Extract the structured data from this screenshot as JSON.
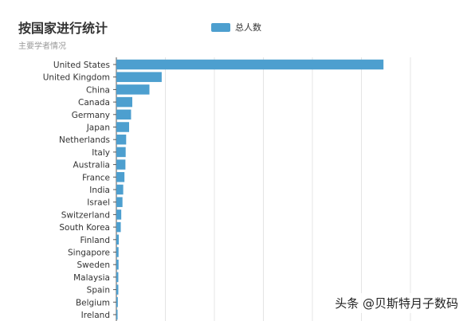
{
  "chart_data": {
    "type": "bar",
    "orientation": "horizontal",
    "title": "按国家进行统计",
    "subtitle": "主要学者情况",
    "legend_position": "top",
    "grid": true,
    "colors": {
      "bar": "#4d9fcf"
    },
    "series": [
      {
        "name": "总人数",
        "values": [
          1090,
          185,
          135,
          65,
          60,
          52,
          40,
          38,
          37,
          33,
          28,
          25,
          20,
          18,
          10,
          9,
          9,
          8,
          8,
          6,
          5
        ]
      }
    ],
    "categories": [
      "United States",
      "United Kingdom",
      "China",
      "Canada",
      "Germany",
      "Japan",
      "Netherlands",
      "Italy",
      "Australia",
      "France",
      "India",
      "Israel",
      "Switzerland",
      "South Korea",
      "Finland",
      "Singapore",
      "Sweden",
      "Malaysia",
      "Spain",
      "Belgium",
      "Ireland"
    ],
    "xlim": [
      0,
      1200
    ]
  },
  "watermark": "头条 @贝斯特月子数码"
}
